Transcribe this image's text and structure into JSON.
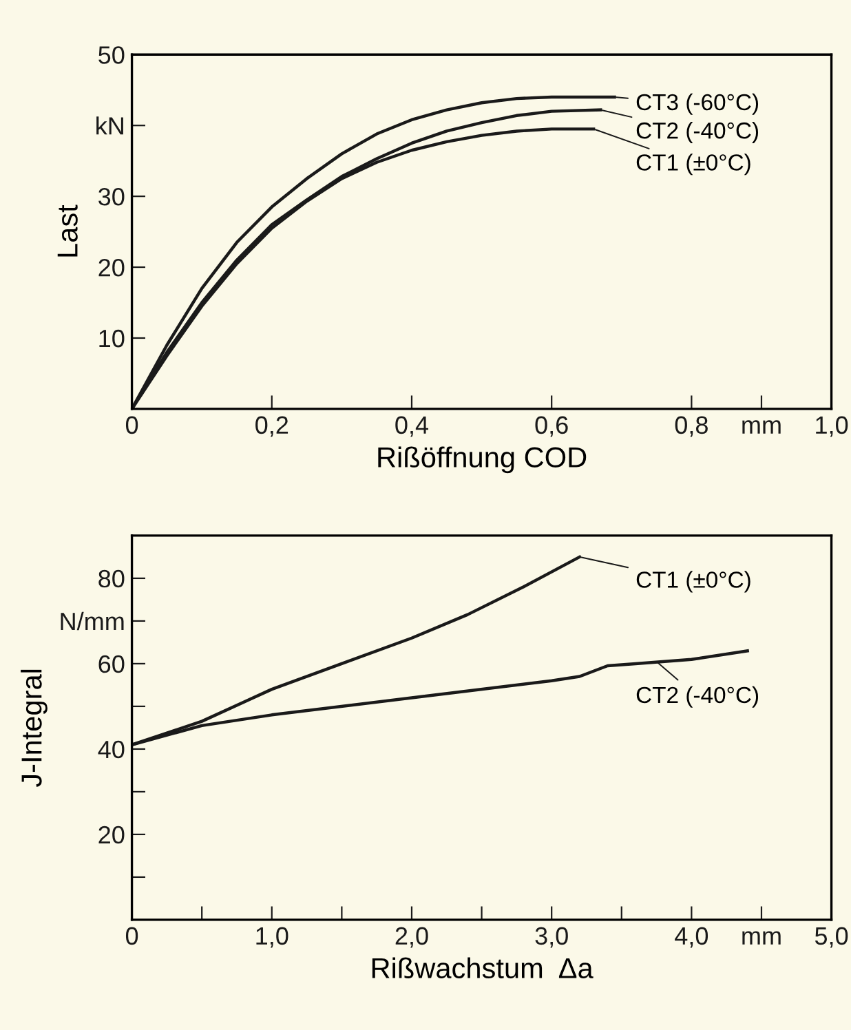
{
  "chart_data": [
    {
      "type": "line",
      "xlabel": "Rißöffnung COD",
      "ylabel": "Last",
      "xlim": [
        0,
        1.0
      ],
      "ylim": [
        0,
        50
      ],
      "xticks": [
        0,
        {
          "value": 0.2,
          "label": "0,2"
        },
        {
          "value": 0.4,
          "label": "0,4"
        },
        {
          "value": 0.6,
          "label": "0,6"
        },
        {
          "value": 0.8,
          "label": "0,8"
        },
        {
          "value": 0.9,
          "label": "mm"
        },
        {
          "value": 1.0,
          "label": "1,0"
        }
      ],
      "yticks": [
        10,
        20,
        30,
        {
          "value": 40,
          "label": "kN"
        },
        50
      ],
      "grid": false,
      "legend": false,
      "marker": "none",
      "line_style": "solid",
      "series": [
        {
          "color": "#1a1a1a",
          "x": [
            0,
            0.05,
            0.1,
            0.15,
            0.2,
            0.25,
            0.3,
            0.35,
            0.4,
            0.45,
            0.5,
            0.55,
            0.6,
            0.69
          ],
          "values": [
            0,
            9,
            17,
            23.5,
            28.5,
            32.5,
            36,
            38.8,
            40.8,
            42.2,
            43.2,
            43.8,
            44,
            44
          ]
        },
        {
          "color": "#1a1a1a",
          "x": [
            0,
            0.05,
            0.1,
            0.15,
            0.2,
            0.25,
            0.3,
            0.35,
            0.4,
            0.45,
            0.5,
            0.55,
            0.6,
            0.67
          ],
          "values": [
            0,
            8,
            15,
            21,
            26,
            29.5,
            32.8,
            35.3,
            37.5,
            39.2,
            40.4,
            41.4,
            42,
            42.2
          ]
        },
        {
          "color": "#1a1a1a",
          "x": [
            0,
            0.05,
            0.1,
            0.15,
            0.2,
            0.25,
            0.3,
            0.35,
            0.4,
            0.45,
            0.5,
            0.55,
            0.6,
            0.66
          ],
          "values": [
            0,
            7.5,
            14.5,
            20.5,
            25.5,
            29.3,
            32.5,
            34.8,
            36.5,
            37.7,
            38.6,
            39.2,
            39.5,
            39.5
          ]
        }
      ],
      "annotations": [
        {
          "text": "CT3 (-60°C)",
          "x": 0.69,
          "y": 44
        },
        {
          "text": "CT2 (-40°C)",
          "x": 0.67,
          "y": 42.2
        },
        {
          "text": "CT1 (±0°C)",
          "x": 0.66,
          "y": 39.5
        }
      ]
    },
    {
      "type": "line",
      "xlabel": "Rißwachstum  Δa",
      "ylabel": "J-Integral",
      "xlim": [
        0,
        5.0
      ],
      "ylim": [
        0,
        90
      ],
      "xticks": [
        0,
        {
          "value": 0.5,
          "label": null
        },
        {
          "value": 1.0,
          "label": "1,0"
        },
        {
          "value": 1.5,
          "label": null
        },
        {
          "value": 2.0,
          "label": "2,0"
        },
        {
          "value": 2.5,
          "label": null
        },
        {
          "value": 3.0,
          "label": "3,0"
        },
        {
          "value": 3.5,
          "label": null
        },
        {
          "value": 4.0,
          "label": "4,0"
        },
        {
          "value": 4.5,
          "label": "mm"
        },
        {
          "value": 5.0,
          "label": "5,0"
        }
      ],
      "yticks": [
        {
          "value": 10,
          "label": null
        },
        20,
        {
          "value": 30,
          "label": null
        },
        40,
        {
          "value": 50,
          "label": null
        },
        60,
        {
          "value": 70,
          "label": "N/mm"
        },
        80
      ],
      "grid": false,
      "legend": false,
      "marker": "none",
      "line_style": "solid",
      "series": [
        {
          "color": "#1a1a1a",
          "x": [
            0,
            0.5,
            1.0,
            1.5,
            2.0,
            2.4,
            2.8,
            3.2
          ],
          "values": [
            41,
            46.5,
            54,
            60,
            66,
            71.5,
            78,
            85
          ]
        },
        {
          "color": "#1a1a1a",
          "x": [
            0,
            0.5,
            1.0,
            2.0,
            3.0,
            3.2,
            3.4,
            3.6,
            4.0,
            4.4
          ],
          "values": [
            41,
            45.5,
            48,
            52,
            56,
            57,
            59.5,
            60,
            61,
            63
          ]
        }
      ],
      "annotations": [
        {
          "text": "CT1 (±0°C)",
          "x": 3.2,
          "y": 85
        },
        {
          "text": "CT2 (-40°C)",
          "x": 3.75,
          "y": 60.5
        }
      ]
    }
  ]
}
